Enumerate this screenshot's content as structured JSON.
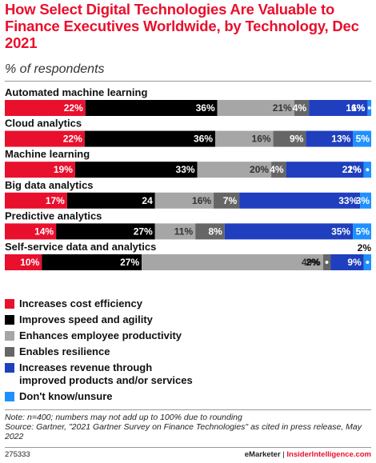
{
  "header": {
    "title": "How Select Digital Technologies Are Valuable to Finance Executives Worldwide, by Technology, Dec 2021",
    "subtitle": "% of respondents"
  },
  "chart_data": {
    "type": "bar",
    "orientation": "horizontal",
    "stacked": true,
    "categories": [
      "Automated machine learning",
      "Cloud analytics",
      "Machine learning",
      "Big data analytics",
      "Predictive analytics",
      "Self-service data and analytics"
    ],
    "series": [
      {
        "name": "Increases cost efficiency",
        "color": "#e8102d",
        "values": [
          22,
          22,
          19,
          17,
          14,
          10
        ],
        "labels": [
          "22%",
          "22%",
          "19%",
          "17%",
          "14%",
          "10%"
        ]
      },
      {
        "name": "Improves speed and agility",
        "color": "#000000",
        "values": [
          36,
          36,
          33,
          24,
          27,
          27
        ],
        "labels": [
          "36%",
          "36%",
          "33%",
          "24",
          "27%",
          "27%"
        ]
      },
      {
        "name": "Enhances employee productivity",
        "color": "#a6a6a6",
        "values": [
          21,
          16,
          20,
          16,
          11,
          49
        ],
        "labels": [
          "21%",
          "16%",
          "20%",
          "16%",
          "11%",
          "49%"
        ]
      },
      {
        "name": "Enables resilience",
        "color": "#666666",
        "values": [
          4,
          9,
          4,
          7,
          8,
          2
        ],
        "labels": [
          "4%",
          "9%",
          "4%",
          "7%",
          "8%",
          "2%"
        ]
      },
      {
        "name": "Increases revenue through improved products and/or services",
        "color": "#1f3fbf",
        "values": [
          16,
          13,
          21,
          33,
          35,
          9
        ],
        "labels": [
          "16%",
          "13%",
          "21%",
          "33%",
          "35%",
          "9%"
        ]
      },
      {
        "name": "Don't know/unsure",
        "color": "#1e90ff",
        "values": [
          1,
          5,
          2,
          3,
          5,
          2
        ],
        "labels": [
          "1%",
          "5%",
          "2%",
          "3%",
          "5%",
          "2%"
        ]
      }
    ],
    "xlim": [
      0,
      100
    ],
    "legend_position": "bottom"
  },
  "legend": {
    "items": [
      {
        "label": "Increases cost efficiency",
        "color": "#e8102d"
      },
      {
        "label": "Improves speed and agility",
        "color": "#000000"
      },
      {
        "label": "Enhances employee productivity",
        "color": "#a6a6a6"
      },
      {
        "label": "Enables resilience",
        "color": "#666666"
      },
      {
        "label": "Increases revenue through improved products and/or services",
        "color": "#1f3fbf"
      },
      {
        "label": "Don't know/unsure",
        "color": "#1e90ff"
      }
    ]
  },
  "notes": {
    "note": "Note: n=400; numbers may not add up to 100% due to rounding",
    "source": "Source: Gartner, \"2021 Gartner Survey on Finance Technologies\" as cited in press release, May 2022"
  },
  "footer": {
    "id": "275333",
    "brand_a": "eMarketer",
    "separator": "|",
    "brand_b": "InsiderIntelligence.com"
  }
}
